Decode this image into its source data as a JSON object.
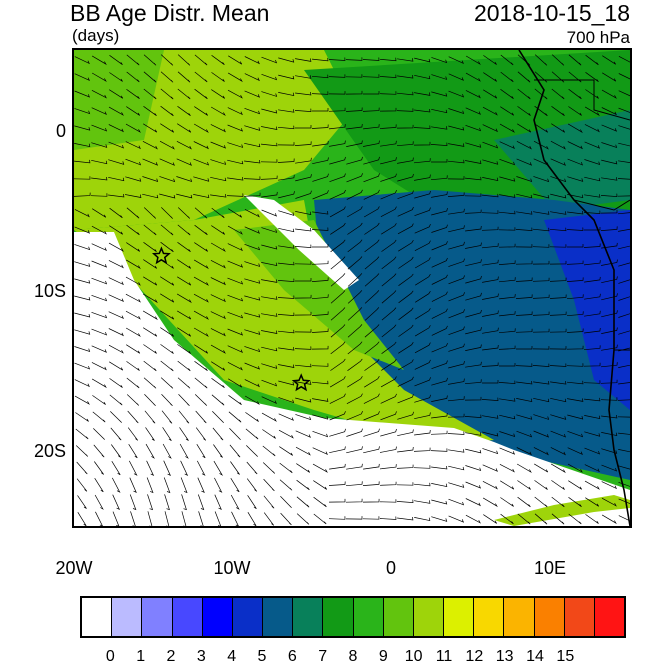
{
  "header": {
    "title": "BB Age Distr. Mean",
    "units": "(days)",
    "datetime": "2018-10-15_18",
    "level": "700 hPa"
  },
  "map": {
    "lon_range": [
      -20,
      15
    ],
    "lat_range": [
      -25,
      5
    ],
    "y_ticks": [
      "0",
      "10S",
      "20S"
    ],
    "x_ticks": [
      "20W",
      "10W",
      "0",
      "10E"
    ],
    "markers": [
      {
        "type": "star",
        "lon": -14.5,
        "lat": -8.0
      },
      {
        "type": "star",
        "lon": -5.7,
        "lat": -16.0
      }
    ]
  },
  "colorbar": {
    "colors": [
      "#ffffff",
      "#bbbbff",
      "#8080ff",
      "#4848ff",
      "#0000ff",
      "#0a2fc8",
      "#065a8a",
      "#08805a",
      "#129a16",
      "#2ab41a",
      "#62c40e",
      "#9ed40a",
      "#dcf000",
      "#f8d800",
      "#fbb400",
      "#fa8000",
      "#f24818",
      "#ff1414"
    ],
    "labels": [
      "0",
      "1",
      "2",
      "3",
      "4",
      "5",
      "6",
      "7",
      "8",
      "9",
      "10",
      "11",
      "12",
      "13",
      "14",
      "15"
    ]
  }
}
